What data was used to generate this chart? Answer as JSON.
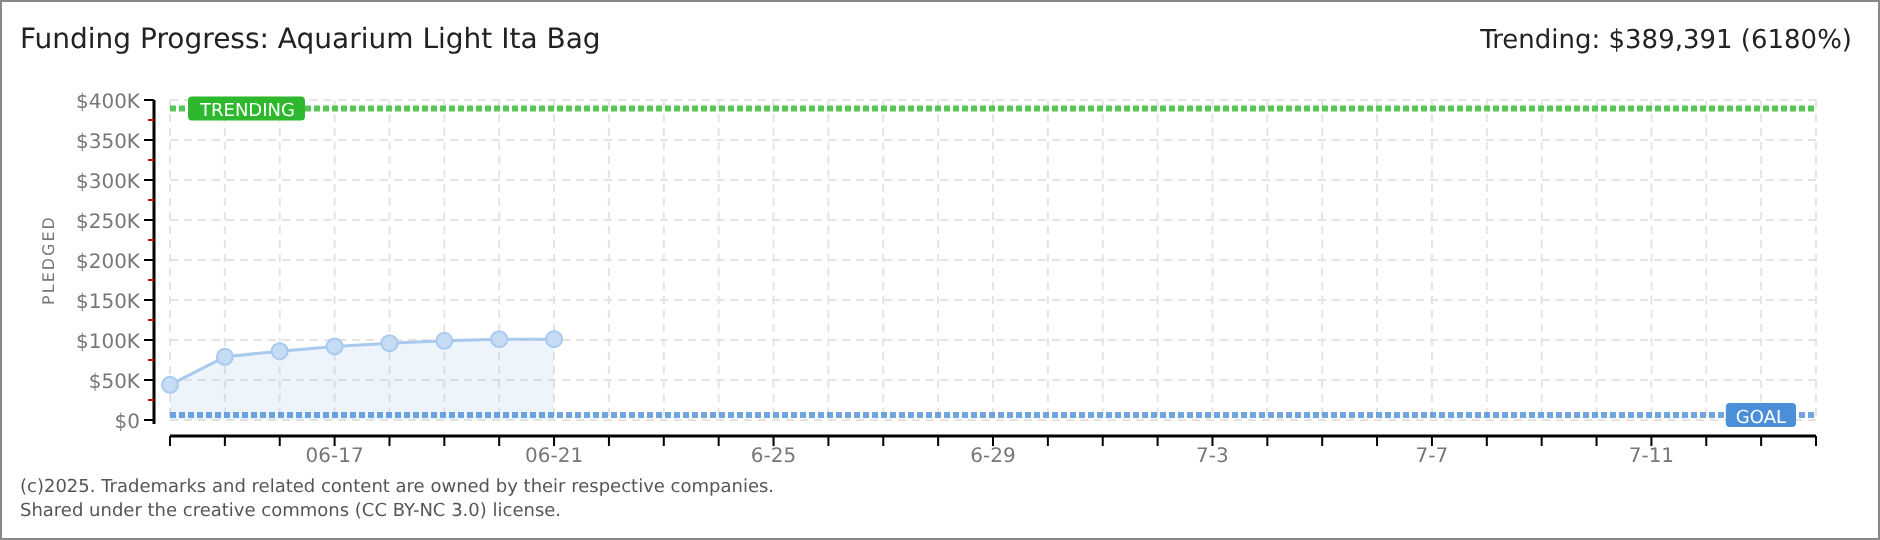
{
  "chart_data": {
    "type": "area",
    "title": "Funding Progress: Aquarium Light Ita Bag",
    "ylabel": "PLEDGED",
    "annotations": [
      "Trending: $389,391 (6180%)",
      "(c)2025. Trademarks and related content are owned by their respective companies.",
      "Shared under the creative commons (CC BY-NC 3.0) license."
    ],
    "x": [
      "--06-14",
      "--06-15",
      "--06-16",
      "--06-17",
      "--06-18",
      "--06-19",
      "--06-20",
      "--06-21"
    ],
    "series": [
      {
        "color": "#a9c9ef",
        "values": [
          44000,
          79000,
          86000,
          92000,
          96000,
          99000,
          101000,
          101000
        ]
      }
    ],
    "marker": "circle",
    "grid": true,
    "xlim": [
      "--06-14",
      "--07-14"
    ],
    "xticks": [
      {
        "value": "--06-14",
        "label": null
      },
      {
        "value": "--06-15",
        "label": null
      },
      {
        "value": "--06-16",
        "label": null
      },
      {
        "value": "--06-17",
        "label": "06-17"
      },
      {
        "value": "--06-18",
        "label": null
      },
      {
        "value": "--06-19",
        "label": null
      },
      {
        "value": "--06-20",
        "label": null
      },
      {
        "value": "--06-21",
        "label": "06-21"
      },
      {
        "value": "--06-22",
        "label": null
      },
      {
        "value": "--06-23",
        "label": null
      },
      {
        "value": "--06-24",
        "label": null
      },
      {
        "value": "--06-25",
        "label": "6-25"
      },
      {
        "value": "--06-26",
        "label": null
      },
      {
        "value": "--06-27",
        "label": null
      },
      {
        "value": "--06-28",
        "label": null
      },
      {
        "value": "--06-29",
        "label": "6-29"
      },
      {
        "value": "--06-30",
        "label": null
      },
      {
        "value": "--07-01",
        "label": null
      },
      {
        "value": "--07-02",
        "label": null
      },
      {
        "value": "--07-03",
        "label": "7-3"
      },
      {
        "value": "--07-04",
        "label": null
      },
      {
        "value": "--07-05",
        "label": null
      },
      {
        "value": "--07-06",
        "label": null
      },
      {
        "value": "--07-07",
        "label": "7-7"
      },
      {
        "value": "--07-08",
        "label": null
      },
      {
        "value": "--07-09",
        "label": null
      },
      {
        "value": "--07-10",
        "label": null
      },
      {
        "value": "--07-11",
        "label": "7-11"
      },
      {
        "value": "--07-12",
        "label": null
      },
      {
        "value": "--07-13",
        "label": null
      },
      {
        "value": "--07-14",
        "label": null
      }
    ],
    "ylim": [
      0,
      400000
    ],
    "yticks": [
      {
        "value": 0,
        "label": "$0"
      },
      {
        "value": 25000,
        "label": null
      },
      {
        "value": 50000,
        "label": "$50K"
      },
      {
        "value": 75000,
        "label": null
      },
      {
        "value": 100000,
        "label": "$100K"
      },
      {
        "value": 125000,
        "label": null
      },
      {
        "value": 150000,
        "label": "$150K"
      },
      {
        "value": 175000,
        "label": null
      },
      {
        "value": 200000,
        "label": "$200K"
      },
      {
        "value": 225000,
        "label": null
      },
      {
        "value": 250000,
        "label": "$250K"
      },
      {
        "value": 275000,
        "label": null
      },
      {
        "value": 300000,
        "label": "$300K"
      },
      {
        "value": 325000,
        "label": null
      },
      {
        "value": 350000,
        "label": "$350K"
      },
      {
        "value": 375000,
        "label": null
      },
      {
        "value": 400000,
        "label": "$400K"
      }
    ],
    "ref_lines": [
      {
        "axis": "y",
        "value": 389391,
        "label": "TRENDING",
        "color": "#2db82d"
      },
      {
        "axis": "y",
        "value": 6300,
        "label": "GOAL",
        "color": "#4a8fd8"
      }
    ]
  }
}
